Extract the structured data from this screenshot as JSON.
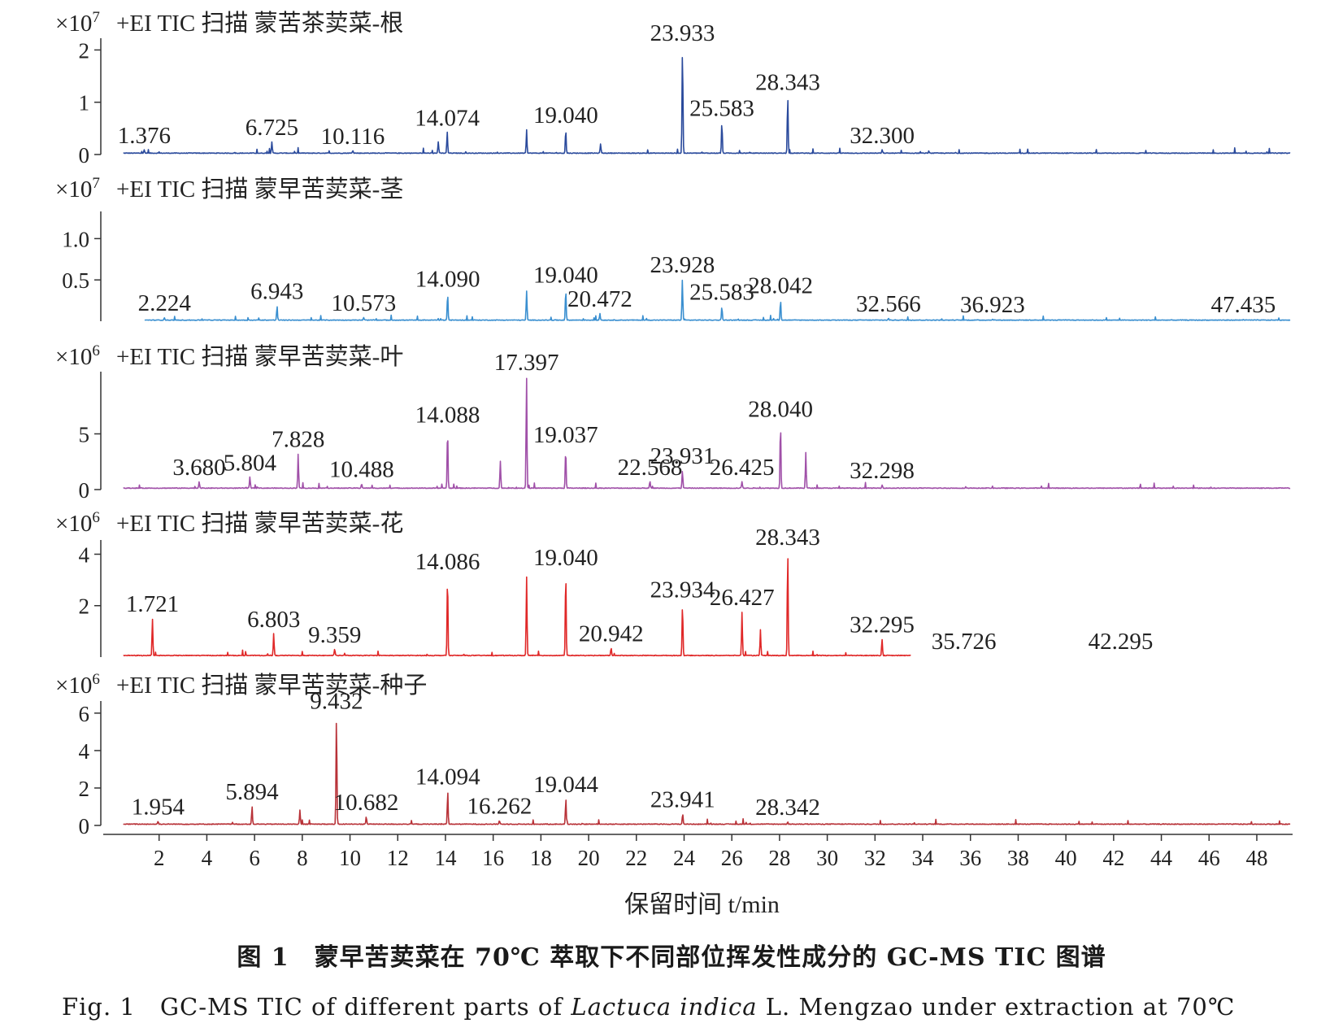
{
  "chart_data": {
    "type": "line",
    "xlabel": "保留时间 t/min",
    "xlim": [
      0,
      49.5
    ],
    "xticks": [
      2,
      4,
      6,
      8,
      10,
      12,
      14,
      16,
      18,
      20,
      22,
      24,
      26,
      28,
      30,
      32,
      34,
      36,
      38,
      40,
      42,
      44,
      46,
      48
    ],
    "panels": [
      {
        "title": "+EI TIC 扫描 蒙苦茶荬菜-根",
        "scale_prefix": "×10",
        "scale_exp": "7",
        "color": "#2a4a9c",
        "ylim": [
          0,
          2.1
        ],
        "yticks": [
          0,
          1,
          2
        ],
        "ytick_labels": [
          "0",
          "1",
          "2"
        ],
        "trace_end": 49.4,
        "baseline": 0.02,
        "peaks": [
          {
            "rt": 1.376,
            "h": 0.06,
            "label": "1.376"
          },
          {
            "rt": 6.725,
            "h": 0.22,
            "label": "6.725"
          },
          {
            "rt": 10.116,
            "h": 0.05,
            "label": "10.116"
          },
          {
            "rt": 13.7,
            "h": 0.22
          },
          {
            "rt": 14.074,
            "h": 0.4,
            "label": "14.074"
          },
          {
            "rt": 17.4,
            "h": 0.37
          },
          {
            "rt": 19.04,
            "h": 0.45,
            "label": "19.040"
          },
          {
            "rt": 20.5,
            "h": 0.18
          },
          {
            "rt": 23.933,
            "h": 2.02,
            "label": "23.933"
          },
          {
            "rt": 25.583,
            "h": 0.58,
            "label": "25.583"
          },
          {
            "rt": 28.343,
            "h": 1.08,
            "label": "28.343"
          },
          {
            "rt": 32.3,
            "h": 0.06,
            "label": "32.300"
          }
        ]
      },
      {
        "title": "+EI TIC 扫描 蒙早苦荬菜-茎",
        "scale_prefix": "×10",
        "scale_exp": "7",
        "color": "#3a8fd0",
        "ylim": [
          0,
          1.25
        ],
        "yticks": [
          0.5,
          1.0
        ],
        "ytick_labels": [
          "0.5",
          "1.0"
        ],
        "trace_start": 1.4,
        "trace_end": 49.4,
        "baseline": 0.01,
        "peaks": [
          {
            "rt": 2.224,
            "h": 0.03,
            "label": "2.224"
          },
          {
            "rt": 6.943,
            "h": 0.17,
            "label": "6.943"
          },
          {
            "rt": 10.573,
            "h": 0.03,
            "label": "10.573"
          },
          {
            "rt": 14.09,
            "h": 0.32,
            "label": "14.090"
          },
          {
            "rt": 17.4,
            "h": 0.35
          },
          {
            "rt": 19.04,
            "h": 0.37,
            "label": "19.040"
          },
          {
            "rt": 20.472,
            "h": 0.08,
            "label": "20.472"
          },
          {
            "rt": 23.928,
            "h": 0.49,
            "label": "23.928"
          },
          {
            "rt": 25.583,
            "h": 0.16,
            "label": "25.583"
          },
          {
            "rt": 28.042,
            "h": 0.24,
            "label": "28.042"
          },
          {
            "rt": 32.566,
            "h": 0.02,
            "label": "32.566"
          },
          {
            "rt": 36.923,
            "h": 0.01,
            "label": "36.923"
          },
          {
            "rt": 47.435,
            "h": 0.01,
            "label": "47.435"
          }
        ]
      },
      {
        "title": "+EI TIC 扫描 蒙早苦荬菜-叶",
        "scale_prefix": "×10",
        "scale_exp": "6",
        "color": "#a050a8",
        "ylim": [
          0,
          10
        ],
        "yticks": [
          0,
          5
        ],
        "ytick_labels": [
          "0",
          "5"
        ],
        "trace_end": 49.4,
        "baseline": 0.1,
        "peaks": [
          {
            "rt": 3.68,
            "h": 0.6,
            "label": "3.680"
          },
          {
            "rt": 5.804,
            "h": 1.0,
            "label": "5.804"
          },
          {
            "rt": 7.828,
            "h": 3.1,
            "label": "7.828"
          },
          {
            "rt": 10.488,
            "h": 0.4,
            "label": "10.488"
          },
          {
            "rt": 14.088,
            "h": 5.3,
            "label": "14.088"
          },
          {
            "rt": 16.3,
            "h": 2.4
          },
          {
            "rt": 17.397,
            "h": 10.0,
            "label": "17.397"
          },
          {
            "rt": 19.037,
            "h": 3.5,
            "label": "19.037"
          },
          {
            "rt": 22.568,
            "h": 0.6,
            "label": "22.568"
          },
          {
            "rt": 23.931,
            "h": 1.6,
            "label": "23.931"
          },
          {
            "rt": 26.425,
            "h": 0.6,
            "label": "26.425"
          },
          {
            "rt": 28.04,
            "h": 5.8,
            "label": "28.040"
          },
          {
            "rt": 29.1,
            "h": 3.2
          },
          {
            "rt": 32.298,
            "h": 0.3,
            "label": "32.298"
          }
        ]
      },
      {
        "title": "+EI TIC 扫描 蒙早苦荬菜-花",
        "scale_prefix": "×10",
        "scale_exp": "6",
        "color": "#e02828",
        "ylim": [
          0,
          4.3
        ],
        "yticks": [
          2,
          4
        ],
        "ytick_labels": [
          "2",
          "4"
        ],
        "trace_end": 33.5,
        "baseline": 0.05,
        "peaks": [
          {
            "rt": 1.721,
            "h": 1.45,
            "label": "1.721"
          },
          {
            "rt": 6.803,
            "h": 0.85,
            "label": "6.803"
          },
          {
            "rt": 9.359,
            "h": 0.25,
            "label": "9.359"
          },
          {
            "rt": 14.086,
            "h": 3.1,
            "label": "14.086"
          },
          {
            "rt": 17.4,
            "h": 3.05
          },
          {
            "rt": 19.04,
            "h": 3.25,
            "label": "19.040"
          },
          {
            "rt": 20.942,
            "h": 0.3,
            "label": "20.942"
          },
          {
            "rt": 23.934,
            "h": 2.0,
            "label": "23.934"
          },
          {
            "rt": 26.427,
            "h": 1.7,
            "label": "26.427"
          },
          {
            "rt": 27.2,
            "h": 1.0
          },
          {
            "rt": 28.343,
            "h": 4.05,
            "label": "28.343"
          },
          {
            "rt": 32.295,
            "h": 0.65,
            "label": "32.295"
          },
          {
            "rt": 35.726,
            "h": 0.0,
            "label": "35.726"
          },
          {
            "rt": 42.295,
            "h": 0.0,
            "label": "42.295"
          }
        ]
      },
      {
        "title": "+EI TIC 扫描 蒙早苦荬菜-种子",
        "scale_prefix": "×10",
        "scale_exp": "6",
        "color": "#b83238",
        "ylim": [
          0,
          6.3
        ],
        "yticks": [
          0,
          2,
          4,
          6
        ],
        "ytick_labels": [
          "0",
          "2",
          "4",
          "6"
        ],
        "trace_end": 49.4,
        "baseline": 0.05,
        "peaks": [
          {
            "rt": 1.954,
            "h": 0.15,
            "label": "1.954"
          },
          {
            "rt": 5.894,
            "h": 0.95,
            "label": "5.894"
          },
          {
            "rt": 7.9,
            "h": 0.75
          },
          {
            "rt": 9.432,
            "h": 5.8,
            "label": "9.432"
          },
          {
            "rt": 10.682,
            "h": 0.4,
            "label": "10.682"
          },
          {
            "rt": 14.094,
            "h": 1.75,
            "label": "14.094"
          },
          {
            "rt": 16.262,
            "h": 0.2,
            "label": "16.262"
          },
          {
            "rt": 19.044,
            "h": 1.35,
            "label": "19.044"
          },
          {
            "rt": 23.941,
            "h": 0.55,
            "label": "23.941"
          },
          {
            "rt": 28.342,
            "h": 0.12,
            "label": "28.342"
          }
        ]
      }
    ]
  },
  "caption": {
    "cn": "图 1　蒙早苦荬菜在 70℃ 萃取下不同部位挥发性成分的 GC-MS TIC 图谱",
    "en_prefix": "Fig. 1　GC-MS TIC of different parts of ",
    "en_species": "Lactuca indica",
    "en_suffix": " L. Mengzao under extraction at 70℃"
  }
}
